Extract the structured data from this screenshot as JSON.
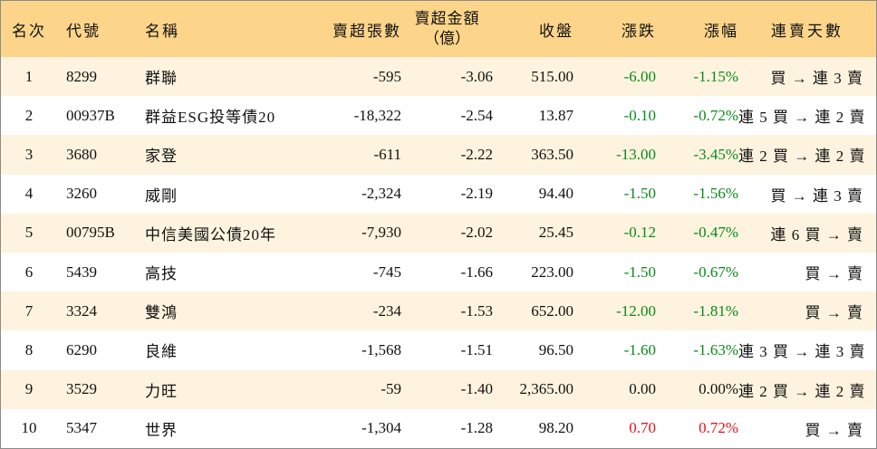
{
  "headers": {
    "rank": "名次",
    "code": "代號",
    "name": "名稱",
    "sell_sheets": "賣超張數",
    "sell_amount_line1": "賣超金額",
    "sell_amount_line2": "（億）",
    "close": "收盤",
    "change": "漲跌",
    "change_pct": "漲幅",
    "consecutive_days": "連賣天數"
  },
  "colors": {
    "header_bg": "#fdd58a",
    "odd_row_bg": "#fdf3de",
    "down": "#0a8a1a",
    "up": "#e8101a"
  },
  "rows": [
    {
      "rank": "1",
      "code": "8299",
      "name": "群聯",
      "sell_sheets": "-595",
      "sell_amount": "-3.06",
      "close": "515.00",
      "change": "-6.00",
      "change_pct": "-1.15%",
      "trend": "down",
      "days": "買 → 連 3 賣"
    },
    {
      "rank": "2",
      "code": "00937B",
      "name": "群益ESG投等債20",
      "sell_sheets": "-18,322",
      "sell_amount": "-2.54",
      "close": "13.87",
      "change": "-0.10",
      "change_pct": "-0.72%",
      "trend": "down",
      "days": "連 5 買 → 連 2 賣"
    },
    {
      "rank": "3",
      "code": "3680",
      "name": "家登",
      "sell_sheets": "-611",
      "sell_amount": "-2.22",
      "close": "363.50",
      "change": "-13.00",
      "change_pct": "-3.45%",
      "trend": "down",
      "days": "連 2 買 → 連 2 賣"
    },
    {
      "rank": "4",
      "code": "3260",
      "name": "威剛",
      "sell_sheets": "-2,324",
      "sell_amount": "-2.19",
      "close": "94.40",
      "change": "-1.50",
      "change_pct": "-1.56%",
      "trend": "down",
      "days": "買 → 連 3 賣"
    },
    {
      "rank": "5",
      "code": "00795B",
      "name": "中信美國公債20年",
      "sell_sheets": "-7,930",
      "sell_amount": "-2.02",
      "close": "25.45",
      "change": "-0.12",
      "change_pct": "-0.47%",
      "trend": "down",
      "days": "連 6 買 → 賣"
    },
    {
      "rank": "6",
      "code": "5439",
      "name": "高技",
      "sell_sheets": "-745",
      "sell_amount": "-1.66",
      "close": "223.00",
      "change": "-1.50",
      "change_pct": "-0.67%",
      "trend": "down",
      "days": "買 → 賣"
    },
    {
      "rank": "7",
      "code": "3324",
      "name": "雙鴻",
      "sell_sheets": "-234",
      "sell_amount": "-1.53",
      "close": "652.00",
      "change": "-12.00",
      "change_pct": "-1.81%",
      "trend": "down",
      "days": "買 → 賣"
    },
    {
      "rank": "8",
      "code": "6290",
      "name": "良維",
      "sell_sheets": "-1,568",
      "sell_amount": "-1.51",
      "close": "96.50",
      "change": "-1.60",
      "change_pct": "-1.63%",
      "trend": "down",
      "days": "連 3 買 → 連 3 賣"
    },
    {
      "rank": "9",
      "code": "3529",
      "name": "力旺",
      "sell_sheets": "-59",
      "sell_amount": "-1.40",
      "close": "2,365.00",
      "change": "0.00",
      "change_pct": "0.00%",
      "trend": "zero",
      "days": "連 2 買 → 連 2 賣"
    },
    {
      "rank": "10",
      "code": "5347",
      "name": "世界",
      "sell_sheets": "-1,304",
      "sell_amount": "-1.28",
      "close": "98.20",
      "change": "0.70",
      "change_pct": "0.72%",
      "trend": "up",
      "days": "買 → 賣"
    }
  ]
}
